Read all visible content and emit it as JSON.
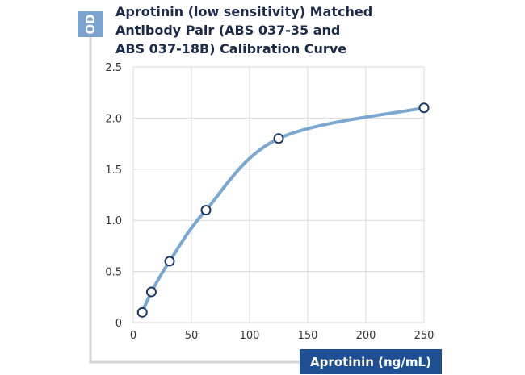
{
  "colors": {
    "title": "#1c2b4a",
    "badge": "#7aa3cf",
    "badge_text": "#ffffff",
    "xlabel_bg": "#1f4f93",
    "xlabel_text": "#ffffff",
    "curve": "#7aa8d2",
    "marker_stroke": "#1b3760",
    "marker_fill": "#ffffff",
    "grid": "#d9d9d9",
    "frame": "#d5d5d5",
    "tick_text": "#333333"
  },
  "chart_data": {
    "type": "line",
    "title_lines": [
      "Aprotinin (low sensitivity) Matched",
      "Antibody Pair (ABS 037-35 and",
      "ABS 037-18B) Calibration Curve"
    ],
    "xlabel": "Aprotinin (ng/mL)",
    "ylabel": "OD",
    "xlim": [
      0,
      250
    ],
    "ylim": [
      0,
      2.5
    ],
    "x_ticks": [
      0,
      50,
      100,
      150,
      200,
      250
    ],
    "y_ticks": [
      0,
      0.5,
      1.0,
      1.5,
      2.0,
      2.5
    ],
    "x_tick_labels": [
      "0",
      "50",
      "100",
      "150",
      "200",
      "250"
    ],
    "y_tick_labels": [
      "0",
      "0.5",
      "1.0",
      "1.5",
      "2.0",
      "2.5"
    ],
    "grid": true,
    "series": [
      {
        "x": [
          7.8,
          15.6,
          31.25,
          62.5,
          125,
          250
        ],
        "y": [
          0.1,
          0.3,
          0.6,
          1.1,
          1.8,
          2.1
        ]
      }
    ]
  }
}
